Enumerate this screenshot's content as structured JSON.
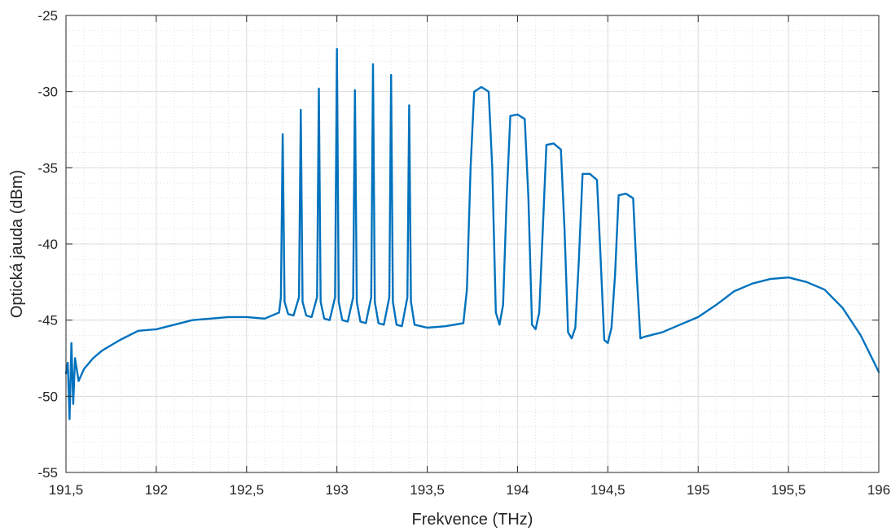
{
  "chart_data": {
    "type": "line",
    "title": "",
    "xlabel": "Frekvence (THz)",
    "ylabel": "Optická jauda (dBm)",
    "xlim": [
      191.5,
      196
    ],
    "ylim": [
      -55,
      -25
    ],
    "xticks": [
      191.5,
      192,
      192.5,
      193,
      193.5,
      194,
      194.5,
      195,
      195.5,
      196
    ],
    "xtick_labels": [
      "191,5",
      "192",
      "192,5",
      "193",
      "193,5",
      "194",
      "194,5",
      "195",
      "195,5",
      "196"
    ],
    "yticks": [
      -55,
      -50,
      -45,
      -40,
      -35,
      -30,
      -25
    ],
    "ytick_labels": [
      "-55",
      "-50",
      "-45",
      "-40",
      "-35",
      "-30",
      "-25"
    ],
    "grid": true,
    "minor_grid": true,
    "legend": "none",
    "series": [
      {
        "color": "#0072BD",
        "x": [
          191.5,
          191.51,
          191.52,
          191.53,
          191.54,
          191.55,
          191.57,
          191.6,
          191.65,
          191.7,
          191.8,
          191.9,
          192.0,
          192.1,
          192.2,
          192.3,
          192.4,
          192.5,
          192.6,
          192.68,
          192.69,
          192.7,
          192.71,
          192.73,
          192.76,
          192.79,
          192.8,
          192.81,
          192.83,
          192.86,
          192.89,
          192.9,
          192.91,
          192.93,
          192.96,
          192.99,
          193.0,
          193.01,
          193.03,
          193.06,
          193.09,
          193.1,
          193.11,
          193.13,
          193.16,
          193.19,
          193.2,
          193.21,
          193.23,
          193.26,
          193.29,
          193.3,
          193.31,
          193.33,
          193.36,
          193.39,
          193.4,
          193.41,
          193.43,
          193.5,
          193.6,
          193.7,
          193.72,
          193.74,
          193.76,
          193.8,
          193.84,
          193.86,
          193.88,
          193.9,
          193.92,
          193.94,
          193.96,
          194.0,
          194.04,
          194.06,
          194.08,
          194.1,
          194.12,
          194.14,
          194.16,
          194.2,
          194.24,
          194.26,
          194.28,
          194.3,
          194.32,
          194.34,
          194.36,
          194.4,
          194.44,
          194.46,
          194.48,
          194.5,
          194.52,
          194.54,
          194.56,
          194.6,
          194.64,
          194.66,
          194.68,
          194.7,
          194.8,
          194.9,
          195.0,
          195.1,
          195.2,
          195.3,
          195.4,
          195.5,
          195.6,
          195.7,
          195.8,
          195.9,
          196.0
        ],
        "y": [
          -48.5,
          -47.8,
          -51.5,
          -46.5,
          -50.5,
          -47.5,
          -49.0,
          -48.2,
          -47.5,
          -47.0,
          -46.3,
          -45.7,
          -45.6,
          -45.3,
          -45.0,
          -44.9,
          -44.8,
          -44.8,
          -44.9,
          -44.5,
          -43.5,
          -32.8,
          -43.8,
          -44.6,
          -44.7,
          -43.5,
          -31.2,
          -43.8,
          -44.7,
          -44.8,
          -43.5,
          -29.8,
          -43.8,
          -44.9,
          -45.0,
          -43.5,
          -27.2,
          -43.8,
          -45.0,
          -45.1,
          -43.5,
          -29.9,
          -43.8,
          -45.1,
          -45.2,
          -43.5,
          -28.2,
          -43.8,
          -45.2,
          -45.3,
          -43.5,
          -28.9,
          -43.8,
          -45.3,
          -45.4,
          -43.5,
          -30.9,
          -43.8,
          -45.3,
          -45.5,
          -45.4,
          -45.2,
          -43.0,
          -35.0,
          -30.0,
          -29.7,
          -30.0,
          -35.0,
          -44.5,
          -45.3,
          -44.0,
          -37.0,
          -31.6,
          -31.5,
          -31.8,
          -37.0,
          -45.3,
          -45.6,
          -44.5,
          -39.0,
          -33.5,
          -33.4,
          -33.8,
          -39.0,
          -45.8,
          -46.2,
          -45.5,
          -41.0,
          -35.4,
          -35.4,
          -35.8,
          -41.0,
          -46.3,
          -46.5,
          -45.5,
          -42.0,
          -36.8,
          -36.7,
          -37.0,
          -42.0,
          -46.2,
          -46.1,
          -45.8,
          -45.3,
          -44.8,
          -44.0,
          -43.1,
          -42.6,
          -42.3,
          -42.2,
          -42.5,
          -43.0,
          -44.2,
          -46.0,
          -48.4
        ]
      }
    ]
  }
}
